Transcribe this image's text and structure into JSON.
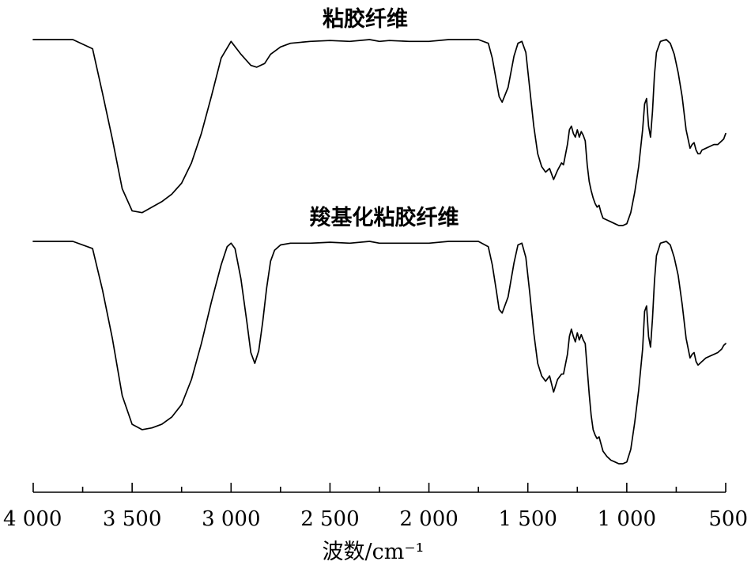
{
  "chart_data": {
    "type": "line",
    "xlabel": "波数/cm⁻¹",
    "ylabel": "",
    "xlim": [
      4000,
      500
    ],
    "x_reversed": true,
    "grid": false,
    "x_ticks": [
      {
        "value": 4000,
        "label": "4 000"
      },
      {
        "value": 3500,
        "label": "3 500"
      },
      {
        "value": 3000,
        "label": "3 000"
      },
      {
        "value": 2500,
        "label": "2 500"
      },
      {
        "value": 2000,
        "label": "2 000"
      },
      {
        "value": 1500,
        "label": "1 500"
      },
      {
        "value": 1000,
        "label": "1 000"
      },
      {
        "value": 500,
        "label": "500"
      }
    ],
    "x_minor_step": 250,
    "ylim": [
      0,
      2.25
    ],
    "series": [
      {
        "name": "粘胶纤维",
        "x": [
          4000,
          3800,
          3700,
          3650,
          3600,
          3550,
          3500,
          3450,
          3400,
          3350,
          3300,
          3250,
          3200,
          3150,
          3100,
          3050,
          3000,
          2950,
          2900,
          2870,
          2830,
          2800,
          2750,
          2700,
          2600,
          2500,
          2400,
          2300,
          2250,
          2200,
          2100,
          2000,
          1900,
          1800,
          1750,
          1700,
          1680,
          1660,
          1645,
          1630,
          1600,
          1570,
          1550,
          1530,
          1510,
          1490,
          1470,
          1450,
          1430,
          1410,
          1390,
          1370,
          1350,
          1330,
          1320,
          1300,
          1290,
          1280,
          1270,
          1260,
          1250,
          1240,
          1230,
          1220,
          1210,
          1200,
          1190,
          1180,
          1170,
          1160,
          1150,
          1140,
          1130,
          1120,
          1100,
          1080,
          1060,
          1040,
          1020,
          1000,
          980,
          960,
          940,
          920,
          910,
          900,
          890,
          880,
          870,
          860,
          850,
          830,
          800,
          780,
          760,
          740,
          720,
          700,
          680,
          670,
          660,
          650,
          640,
          630,
          620,
          600,
          580,
          560,
          540,
          520,
          510,
          500
        ],
        "y": [
          2.19,
          2.19,
          2.14,
          1.9,
          1.65,
          1.38,
          1.26,
          1.25,
          1.28,
          1.31,
          1.35,
          1.41,
          1.52,
          1.68,
          1.88,
          2.09,
          2.18,
          2.11,
          2.05,
          2.04,
          2.06,
          2.11,
          2.15,
          2.17,
          2.18,
          2.185,
          2.18,
          2.19,
          2.18,
          2.185,
          2.18,
          2.18,
          2.19,
          2.19,
          2.19,
          2.17,
          2.09,
          1.97,
          1.88,
          1.85,
          1.93,
          2.1,
          2.17,
          2.18,
          2.12,
          1.92,
          1.72,
          1.57,
          1.5,
          1.47,
          1.49,
          1.43,
          1.48,
          1.52,
          1.51,
          1.62,
          1.7,
          1.72,
          1.68,
          1.66,
          1.7,
          1.66,
          1.69,
          1.67,
          1.64,
          1.51,
          1.42,
          1.37,
          1.33,
          1.3,
          1.28,
          1.29,
          1.25,
          1.22,
          1.21,
          1.2,
          1.19,
          1.18,
          1.18,
          1.19,
          1.25,
          1.36,
          1.5,
          1.7,
          1.84,
          1.87,
          1.72,
          1.66,
          1.8,
          2.0,
          2.12,
          2.18,
          2.19,
          2.17,
          2.11,
          2.01,
          1.88,
          1.7,
          1.6,
          1.62,
          1.63,
          1.59,
          1.57,
          1.57,
          1.59,
          1.6,
          1.61,
          1.62,
          1.62,
          1.64,
          1.65,
          1.68
        ]
      },
      {
        "name": "羧基化粘胶纤维",
        "x": [
          4000,
          3800,
          3700,
          3650,
          3600,
          3550,
          3500,
          3450,
          3400,
          3350,
          3300,
          3250,
          3200,
          3150,
          3100,
          3050,
          3020,
          3000,
          2980,
          2950,
          2920,
          2900,
          2880,
          2860,
          2840,
          2820,
          2800,
          2780,
          2750,
          2700,
          2600,
          2500,
          2400,
          2300,
          2250,
          2200,
          2100,
          2000,
          1900,
          1800,
          1750,
          1700,
          1680,
          1660,
          1645,
          1630,
          1600,
          1570,
          1550,
          1530,
          1510,
          1490,
          1470,
          1450,
          1430,
          1410,
          1390,
          1370,
          1350,
          1330,
          1320,
          1300,
          1290,
          1280,
          1270,
          1260,
          1250,
          1240,
          1230,
          1220,
          1210,
          1200,
          1190,
          1180,
          1170,
          1160,
          1150,
          1140,
          1130,
          1120,
          1100,
          1080,
          1060,
          1040,
          1020,
          1000,
          980,
          960,
          940,
          920,
          910,
          900,
          890,
          880,
          870,
          860,
          850,
          830,
          800,
          780,
          760,
          740,
          720,
          700,
          680,
          670,
          660,
          650,
          640,
          630,
          620,
          600,
          580,
          560,
          540,
          520,
          510,
          500
        ],
        "y": [
          2.19,
          2.19,
          2.15,
          1.92,
          1.65,
          1.33,
          1.17,
          1.14,
          1.15,
          1.17,
          1.21,
          1.28,
          1.42,
          1.62,
          1.85,
          2.06,
          2.16,
          2.18,
          2.15,
          1.98,
          1.74,
          1.57,
          1.51,
          1.58,
          1.74,
          1.93,
          2.08,
          2.14,
          2.17,
          2.18,
          2.18,
          2.185,
          2.18,
          2.19,
          2.18,
          2.18,
          2.18,
          2.18,
          2.19,
          2.19,
          2.19,
          2.16,
          2.06,
          1.92,
          1.81,
          1.79,
          1.88,
          2.07,
          2.17,
          2.18,
          2.1,
          1.9,
          1.68,
          1.51,
          1.44,
          1.41,
          1.44,
          1.35,
          1.42,
          1.45,
          1.45,
          1.56,
          1.66,
          1.7,
          1.66,
          1.63,
          1.68,
          1.64,
          1.67,
          1.64,
          1.62,
          1.48,
          1.34,
          1.22,
          1.14,
          1.11,
          1.09,
          1.1,
          1.06,
          1.02,
          0.99,
          0.97,
          0.96,
          0.95,
          0.95,
          0.96,
          1.03,
          1.18,
          1.36,
          1.59,
          1.8,
          1.83,
          1.66,
          1.6,
          1.76,
          1.97,
          2.11,
          2.18,
          2.19,
          2.17,
          2.1,
          2.0,
          1.84,
          1.65,
          1.54,
          1.56,
          1.57,
          1.52,
          1.5,
          1.51,
          1.52,
          1.54,
          1.55,
          1.56,
          1.57,
          1.59,
          1.61,
          1.62
        ]
      }
    ]
  }
}
